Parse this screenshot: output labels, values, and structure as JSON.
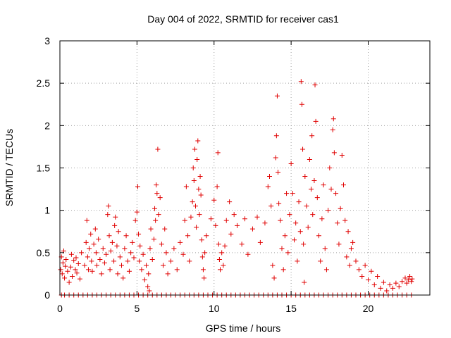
{
  "chart_data": {
    "type": "scatter",
    "title": "Day 004 of 2022, SRMTID for receiver cas1",
    "xlabel": "GPS time / hours",
    "ylabel": "SRMTID / TECUs",
    "xlim": [
      0,
      24
    ],
    "ylim": [
      0,
      3
    ],
    "xticks": [
      "0",
      "5",
      "10",
      "15",
      "20"
    ],
    "yticks": [
      "0",
      "0.5",
      "1",
      "1.5",
      "2",
      "2.5",
      "3"
    ],
    "xtick_values": [
      0,
      5,
      10,
      15,
      20
    ],
    "ytick_values": [
      0,
      0.5,
      1,
      1.5,
      2,
      2.5,
      3
    ],
    "grid": true,
    "marker": "+",
    "series_color": "#e00000",
    "series": [
      {
        "name": "SRMTID",
        "description_of_bands": "Data clusters read from plot (hour ranges with approximate SRMTID range)",
        "points": [
          [
            0.05,
            0.3
          ],
          [
            0.1,
            0.45
          ],
          [
            0.15,
            0.25
          ],
          [
            0.2,
            0.38
          ],
          [
            0.25,
            0.52
          ],
          [
            0.3,
            0.2
          ],
          [
            0.35,
            0.34
          ],
          [
            0.4,
            0.42
          ],
          [
            0.5,
            0.28
          ],
          [
            0.6,
            0.15
          ],
          [
            0.7,
            0.33
          ],
          [
            0.75,
            0.48
          ],
          [
            0.8,
            0.22
          ],
          [
            0.9,
            0.41
          ],
          [
            1.0,
            0.3
          ],
          [
            1.05,
            0.44
          ],
          [
            1.1,
            0.26
          ],
          [
            1.2,
            0.37
          ],
          [
            1.3,
            0.19
          ],
          [
            1.4,
            0.5
          ],
          [
            1.6,
            0.35
          ],
          [
            1.7,
            0.62
          ],
          [
            1.75,
            0.88
          ],
          [
            1.8,
            0.45
          ],
          [
            1.85,
            0.3
          ],
          [
            1.9,
            0.55
          ],
          [
            2.0,
            0.72
          ],
          [
            2.05,
            0.4
          ],
          [
            2.1,
            0.28
          ],
          [
            2.2,
            0.6
          ],
          [
            2.3,
            0.78
          ],
          [
            2.35,
            0.5
          ],
          [
            2.4,
            0.35
          ],
          [
            2.5,
            0.66
          ],
          [
            2.6,
            0.42
          ],
          [
            2.7,
            0.25
          ],
          [
            2.8,
            0.55
          ],
          [
            2.9,
            0.38
          ],
          [
            3.0,
            0.48
          ],
          [
            3.1,
            0.95
          ],
          [
            3.15,
            1.05
          ],
          [
            3.2,
            0.7
          ],
          [
            3.25,
            0.3
          ],
          [
            3.3,
            0.52
          ],
          [
            3.4,
            0.62
          ],
          [
            3.5,
            0.4
          ],
          [
            3.55,
            0.82
          ],
          [
            3.6,
            0.92
          ],
          [
            3.7,
            0.58
          ],
          [
            3.75,
            0.25
          ],
          [
            3.8,
            0.75
          ],
          [
            3.9,
            0.45
          ],
          [
            4.0,
            0.35
          ],
          [
            4.1,
            0.2
          ],
          [
            4.2,
            0.55
          ],
          [
            4.3,
            0.7
          ],
          [
            4.4,
            0.4
          ],
          [
            4.5,
            0.28
          ],
          [
            4.6,
            0.5
          ],
          [
            4.7,
            0.62
          ],
          [
            4.8,
            0.44
          ],
          [
            4.9,
            0.88
          ],
          [
            5.0,
            0.98
          ],
          [
            5.05,
            1.28
          ],
          [
            5.1,
            0.72
          ],
          [
            5.15,
            0.4
          ],
          [
            5.2,
            0.58
          ],
          [
            5.3,
            0.3
          ],
          [
            5.4,
            0.48
          ],
          [
            5.5,
            0.18
          ],
          [
            5.6,
            0.35
          ],
          [
            5.7,
            0.1
          ],
          [
            5.75,
            0.25
          ],
          [
            5.8,
            0.05
          ],
          [
            5.85,
            0.55
          ],
          [
            5.9,
            0.78
          ],
          [
            6.0,
            0.42
          ],
          [
            6.1,
            0.66
          ],
          [
            6.15,
            1.02
          ],
          [
            6.2,
            0.88
          ],
          [
            6.25,
            1.3
          ],
          [
            6.3,
            1.2
          ],
          [
            6.35,
            1.72
          ],
          [
            6.4,
            0.95
          ],
          [
            6.5,
            1.15
          ],
          [
            6.6,
            0.6
          ],
          [
            6.7,
            0.35
          ],
          [
            6.8,
            0.78
          ],
          [
            6.9,
            0.5
          ],
          [
            7.0,
            0.25
          ],
          [
            7.2,
            0.4
          ],
          [
            7.4,
            0.55
          ],
          [
            7.6,
            0.3
          ],
          [
            7.8,
            0.62
          ],
          [
            8.0,
            0.48
          ],
          [
            8.1,
            0.88
          ],
          [
            8.2,
            1.28
          ],
          [
            8.3,
            0.7
          ],
          [
            8.4,
            0.4
          ],
          [
            8.5,
            0.92
          ],
          [
            8.6,
            1.1
          ],
          [
            8.65,
            1.5
          ],
          [
            8.7,
            1.35
          ],
          [
            8.75,
            1.72
          ],
          [
            8.8,
            1.05
          ],
          [
            8.85,
            0.8
          ],
          [
            8.9,
            1.6
          ],
          [
            8.95,
            1.82
          ],
          [
            9.0,
            1.25
          ],
          [
            9.05,
            0.95
          ],
          [
            9.1,
            1.4
          ],
          [
            9.15,
            1.18
          ],
          [
            9.2,
            0.65
          ],
          [
            9.25,
            0.45
          ],
          [
            9.3,
            0.3
          ],
          [
            9.35,
            0.2
          ],
          [
            9.4,
            0.5
          ],
          [
            9.5,
            0.7
          ],
          [
            9.8,
            0.9
          ],
          [
            10.0,
            1.12
          ],
          [
            10.1,
            0.82
          ],
          [
            10.2,
            1.28
          ],
          [
            10.25,
            1.68
          ],
          [
            10.3,
            0.6
          ],
          [
            10.35,
            0.42
          ],
          [
            10.4,
            0.3
          ],
          [
            10.5,
            0.5
          ],
          [
            10.6,
            0.35
          ],
          [
            10.7,
            0.58
          ],
          [
            10.8,
            0.88
          ],
          [
            11.0,
            1.1
          ],
          [
            11.1,
            0.72
          ],
          [
            11.3,
            0.95
          ],
          [
            11.5,
            0.82
          ],
          [
            11.8,
            0.6
          ],
          [
            12.0,
            0.9
          ],
          [
            12.2,
            0.48
          ],
          [
            12.5,
            0.78
          ],
          [
            12.8,
            0.92
          ],
          [
            13.0,
            0.62
          ],
          [
            13.3,
            0.85
          ],
          [
            13.5,
            1.28
          ],
          [
            13.6,
            1.4
          ],
          [
            13.7,
            1.05
          ],
          [
            13.8,
            0.35
          ],
          [
            13.9,
            0.2
          ],
          [
            14.0,
            1.62
          ],
          [
            14.05,
            1.88
          ],
          [
            14.1,
            2.35
          ],
          [
            14.15,
            1.45
          ],
          [
            14.2,
            1.08
          ],
          [
            14.3,
            0.88
          ],
          [
            14.4,
            0.55
          ],
          [
            14.5,
            0.3
          ],
          [
            14.6,
            0.7
          ],
          [
            14.7,
            1.2
          ],
          [
            14.8,
            0.5
          ],
          [
            14.9,
            0.95
          ],
          [
            15.0,
            1.55
          ],
          [
            15.1,
            1.2
          ],
          [
            15.2,
            0.65
          ],
          [
            15.3,
            0.85
          ],
          [
            15.4,
            0.4
          ],
          [
            15.5,
            1.1
          ],
          [
            15.6,
            0.75
          ],
          [
            15.65,
            2.52
          ],
          [
            15.7,
            2.25
          ],
          [
            15.75,
            1.72
          ],
          [
            15.8,
            0.6
          ],
          [
            15.85,
            0.15
          ],
          [
            15.9,
            1.4
          ],
          [
            16.0,
            1.05
          ],
          [
            16.1,
            0.8
          ],
          [
            16.2,
            1.6
          ],
          [
            16.3,
            1.25
          ],
          [
            16.35,
            1.88
          ],
          [
            16.4,
            0.95
          ],
          [
            16.5,
            1.35
          ],
          [
            16.55,
            2.48
          ],
          [
            16.6,
            2.05
          ],
          [
            16.7,
            1.15
          ],
          [
            16.8,
            0.7
          ],
          [
            16.9,
            0.4
          ],
          [
            17.0,
            0.9
          ],
          [
            17.1,
            1.3
          ],
          [
            17.2,
            0.55
          ],
          [
            17.3,
            0.3
          ],
          [
            17.4,
            1.0
          ],
          [
            17.5,
            1.5
          ],
          [
            17.6,
            1.25
          ],
          [
            17.7,
            1.95
          ],
          [
            17.75,
            2.08
          ],
          [
            17.8,
            1.68
          ],
          [
            17.9,
            1.2
          ],
          [
            18.0,
            0.85
          ],
          [
            18.1,
            0.6
          ],
          [
            18.2,
            1.02
          ],
          [
            18.3,
            1.65
          ],
          [
            18.4,
            1.3
          ],
          [
            18.5,
            0.88
          ],
          [
            18.6,
            0.45
          ],
          [
            18.7,
            0.75
          ],
          [
            18.8,
            0.35
          ],
          [
            18.9,
            0.55
          ],
          [
            19.0,
            0.62
          ],
          [
            19.2,
            0.4
          ],
          [
            19.4,
            0.3
          ],
          [
            19.6,
            0.22
          ],
          [
            19.8,
            0.35
          ],
          [
            20.0,
            0.18
          ],
          [
            20.2,
            0.28
          ],
          [
            20.4,
            0.12
          ],
          [
            20.6,
            0.22
          ],
          [
            20.8,
            0.08
          ],
          [
            21.0,
            0.15
          ],
          [
            21.2,
            0.05
          ],
          [
            21.4,
            0.12
          ],
          [
            21.6,
            0.08
          ],
          [
            21.8,
            0.14
          ],
          [
            22.0,
            0.1
          ],
          [
            22.2,
            0.16
          ],
          [
            22.4,
            0.2
          ],
          [
            22.5,
            0.14
          ],
          [
            22.6,
            0.18
          ],
          [
            22.7,
            0.22
          ],
          [
            22.8,
            0.16
          ],
          [
            22.85,
            0.19
          ]
        ],
        "zero_band_hours": [
          0.1,
          0.3,
          0.6,
          0.9,
          1.2,
          1.5,
          1.8,
          2.1,
          2.4,
          2.7,
          3.0,
          3.3,
          3.6,
          3.9,
          4.2,
          4.5,
          4.8,
          5.1,
          5.4,
          5.7,
          6.0,
          6.3,
          6.6,
          6.9,
          7.2,
          7.5,
          7.8,
          8.1,
          8.4,
          8.7,
          9.0,
          9.3,
          9.6,
          9.9,
          10.2,
          10.5,
          10.8,
          11.1,
          11.4,
          11.7,
          12.0,
          12.3,
          12.6,
          12.9,
          13.2,
          13.5,
          13.8,
          14.1,
          14.4,
          14.7,
          15.0,
          15.3,
          15.6,
          15.9,
          16.2,
          16.5,
          16.8,
          17.1,
          17.4,
          17.7,
          18.0,
          18.3,
          18.6,
          18.9,
          19.2,
          19.5,
          19.8,
          20.1,
          20.4,
          20.7,
          21.0,
          21.3,
          21.6,
          21.9,
          22.2,
          22.5,
          22.8
        ]
      }
    ]
  }
}
